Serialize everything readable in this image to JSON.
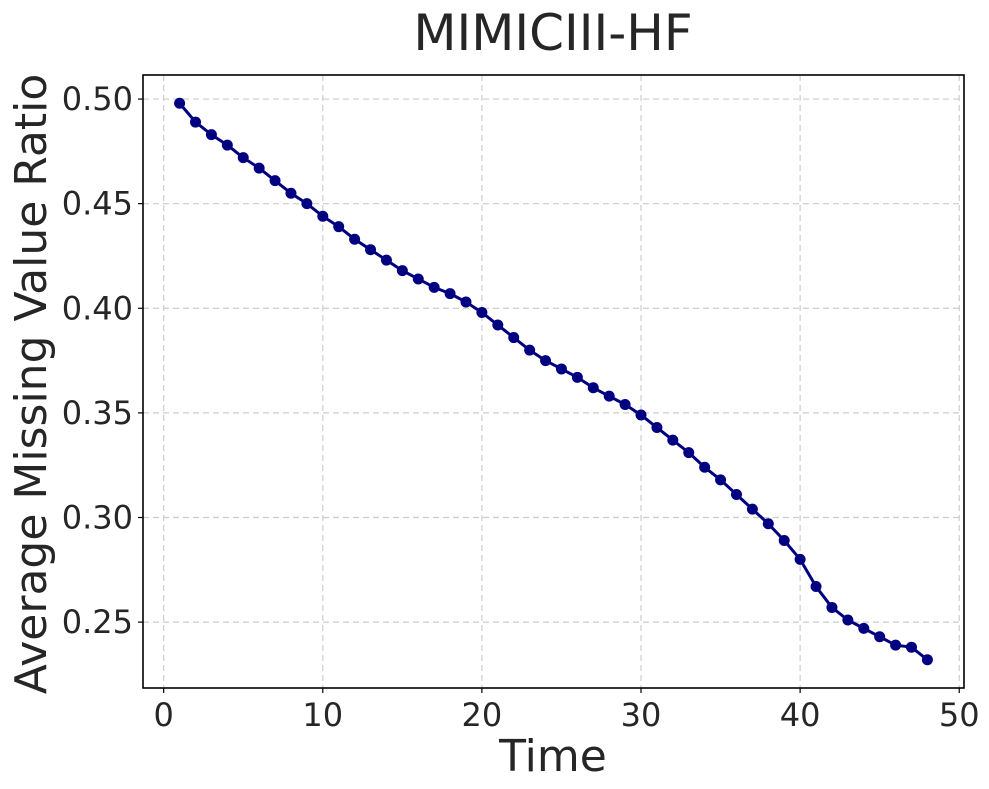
{
  "chart_data": {
    "type": "line",
    "title": "MIMICIII-HF",
    "xlabel": "Time",
    "ylabel": "Average Missing Value Ratio",
    "xlim": [
      -1.3,
      50.3
    ],
    "ylim": [
      0.2185,
      0.5115
    ],
    "xticks": [
      0,
      10,
      20,
      30,
      40,
      50
    ],
    "yticks": [
      0.25,
      0.3,
      0.35,
      0.4,
      0.45,
      0.5
    ],
    "grid": true,
    "legend": "none",
    "color": "#000080",
    "marker": "circle",
    "series": [
      {
        "x": [
          1,
          2,
          3,
          4,
          5,
          6,
          7,
          8,
          9,
          10,
          11,
          12,
          13,
          14,
          15,
          16,
          17,
          18,
          19,
          20,
          21,
          22,
          23,
          24,
          25,
          26,
          27,
          28,
          29,
          30,
          31,
          32,
          33,
          34,
          35,
          36,
          37,
          38,
          39,
          40,
          41,
          42,
          43,
          44,
          45,
          46,
          47,
          48
        ],
        "values": [
          0.498,
          0.489,
          0.483,
          0.478,
          0.472,
          0.467,
          0.461,
          0.455,
          0.45,
          0.444,
          0.439,
          0.433,
          0.428,
          0.423,
          0.418,
          0.414,
          0.41,
          0.407,
          0.403,
          0.398,
          0.392,
          0.386,
          0.38,
          0.375,
          0.371,
          0.367,
          0.362,
          0.358,
          0.354,
          0.349,
          0.343,
          0.337,
          0.331,
          0.324,
          0.318,
          0.311,
          0.304,
          0.297,
          0.289,
          0.28,
          0.267,
          0.257,
          0.251,
          0.247,
          0.243,
          0.239,
          0.238,
          0.232
        ]
      }
    ]
  }
}
